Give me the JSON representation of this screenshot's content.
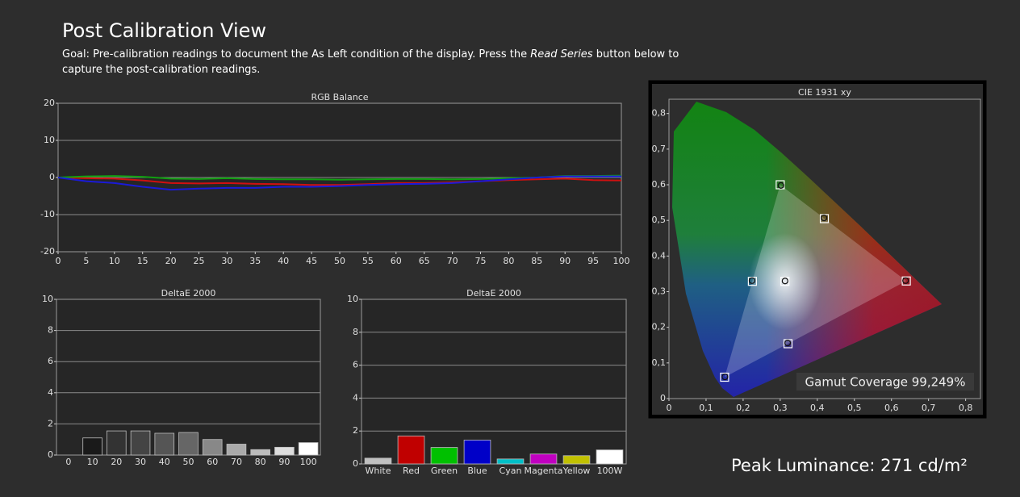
{
  "header": {
    "title": "Post Calibration View",
    "goal_prefix": "Goal: Pre-calibration readings to document the As Left condition of the display. Press the ",
    "goal_emphasis": "Read Series",
    "goal_suffix": " button below to capture the post-calibration readings.",
    "peak_luminance": "Peak Luminance: 271 cd/m²"
  },
  "chart_data": [
    {
      "type": "line",
      "title": "RGB Balance",
      "x": [
        0,
        5,
        10,
        15,
        20,
        25,
        30,
        35,
        40,
        45,
        50,
        55,
        60,
        65,
        70,
        75,
        80,
        85,
        90,
        95,
        100
      ],
      "series": [
        {
          "color": "#d01010",
          "values": [
            0,
            -0.2,
            -0.3,
            -0.8,
            -1.5,
            -1.6,
            -1.5,
            -1.7,
            -1.8,
            -2,
            -2,
            -1.8,
            -1.5,
            -1.5,
            -1.3,
            -1,
            -0.7,
            -0.5,
            -0.3,
            -0.7,
            -0.8
          ]
        },
        {
          "color": "#10a010",
          "values": [
            0,
            0.3,
            0.4,
            0.2,
            -0.3,
            -0.4,
            -0.2,
            -0.4,
            -0.5,
            -0.5,
            -0.6,
            -0.5,
            -0.4,
            -0.4,
            -0.5,
            -0.4,
            -0.2,
            0,
            0.4,
            0.4,
            0.5
          ]
        },
        {
          "color": "#1a1ad8",
          "values": [
            0,
            -1,
            -1.5,
            -2.5,
            -3.3,
            -3,
            -2.8,
            -2.8,
            -2.5,
            -2.5,
            -2.3,
            -2,
            -1.8,
            -1.7,
            -1.5,
            -1,
            -0.5,
            0,
            0.3,
            0.3,
            0.3
          ]
        }
      ],
      "xlim": [
        0,
        100
      ],
      "xticks": [
        0,
        5,
        10,
        15,
        20,
        25,
        30,
        35,
        40,
        45,
        50,
        55,
        60,
        65,
        70,
        75,
        80,
        85,
        90,
        95,
        100
      ],
      "ylim": [
        -20,
        20
      ],
      "yticks": [
        -20,
        -10,
        0,
        10,
        20
      ],
      "grid": true
    },
    {
      "type": "bar",
      "title": "DeltaE 2000",
      "categories": [
        "0",
        "10",
        "20",
        "30",
        "40",
        "50",
        "60",
        "70",
        "80",
        "90",
        "100"
      ],
      "values": [
        0,
        1.1,
        1.55,
        1.55,
        1.4,
        1.45,
        1.0,
        0.7,
        0.35,
        0.5,
        0.8
      ],
      "colors": [
        "#000000",
        "#1a1a1a",
        "#333333",
        "#444444",
        "#555555",
        "#666666",
        "#888888",
        "#aaaaaa",
        "#bbbbbb",
        "#dddddd",
        "#ffffff"
      ],
      "ylim": [
        0,
        10
      ],
      "yticks": [
        0,
        2,
        4,
        6,
        8,
        10
      ],
      "grid": true
    },
    {
      "type": "bar",
      "title": "DeltaE 2000",
      "categories": [
        "White",
        "Red",
        "Green",
        "Blue",
        "Cyan",
        "Magenta",
        "Yellow",
        "100W"
      ],
      "values": [
        0.35,
        1.7,
        1.0,
        1.45,
        0.3,
        0.6,
        0.5,
        0.85
      ],
      "colors": [
        "#c0c0c0",
        "#c00000",
        "#00c000",
        "#0000c8",
        "#00c0c8",
        "#c000c0",
        "#c0c000",
        "#ffffff"
      ],
      "ylim": [
        0,
        10
      ],
      "yticks": [
        0,
        2,
        4,
        6,
        8,
        10
      ],
      "grid": true
    },
    {
      "type": "scatter",
      "title": "CIE 1931 xy",
      "targets": {
        "x": [
          0.64,
          0.3,
          0.15,
          0.225,
          0.321,
          0.419,
          0.3127
        ],
        "y": [
          0.33,
          0.6,
          0.06,
          0.329,
          0.154,
          0.505,
          0.329
        ]
      },
      "measured": {
        "x": [
          0.638,
          0.302,
          0.151,
          0.224,
          0.32,
          0.418,
          0.313
        ],
        "y": [
          0.331,
          0.598,
          0.061,
          0.331,
          0.156,
          0.507,
          0.33
        ]
      },
      "xlim": [
        0,
        0.84
      ],
      "xticks": [
        0,
        {
          "value": 0.1,
          "label": "0,1"
        },
        {
          "value": 0.2,
          "label": "0,2"
        },
        {
          "value": 0.3,
          "label": "0,3"
        },
        {
          "value": 0.4,
          "label": "0,4"
        },
        {
          "value": 0.5,
          "label": "0,5"
        },
        {
          "value": 0.6,
          "label": "0,6"
        },
        {
          "value": 0.7,
          "label": "0,7"
        },
        {
          "value": 0.8,
          "label": "0,8"
        }
      ],
      "ylim": [
        0,
        0.84
      ],
      "yticks": [
        0,
        {
          "value": 0.1,
          "label": "0,1"
        },
        {
          "value": 0.2,
          "label": "0,2"
        },
        {
          "value": 0.3,
          "label": "0,3"
        },
        {
          "value": 0.4,
          "label": "0,4"
        },
        {
          "value": 0.5,
          "label": "0,5"
        },
        {
          "value": 0.6,
          "label": "0,6"
        },
        {
          "value": 0.7,
          "label": "0,7"
        },
        {
          "value": 0.8,
          "label": "0,8"
        }
      ],
      "annotation": "Gamut Coverage 99,249%"
    }
  ]
}
